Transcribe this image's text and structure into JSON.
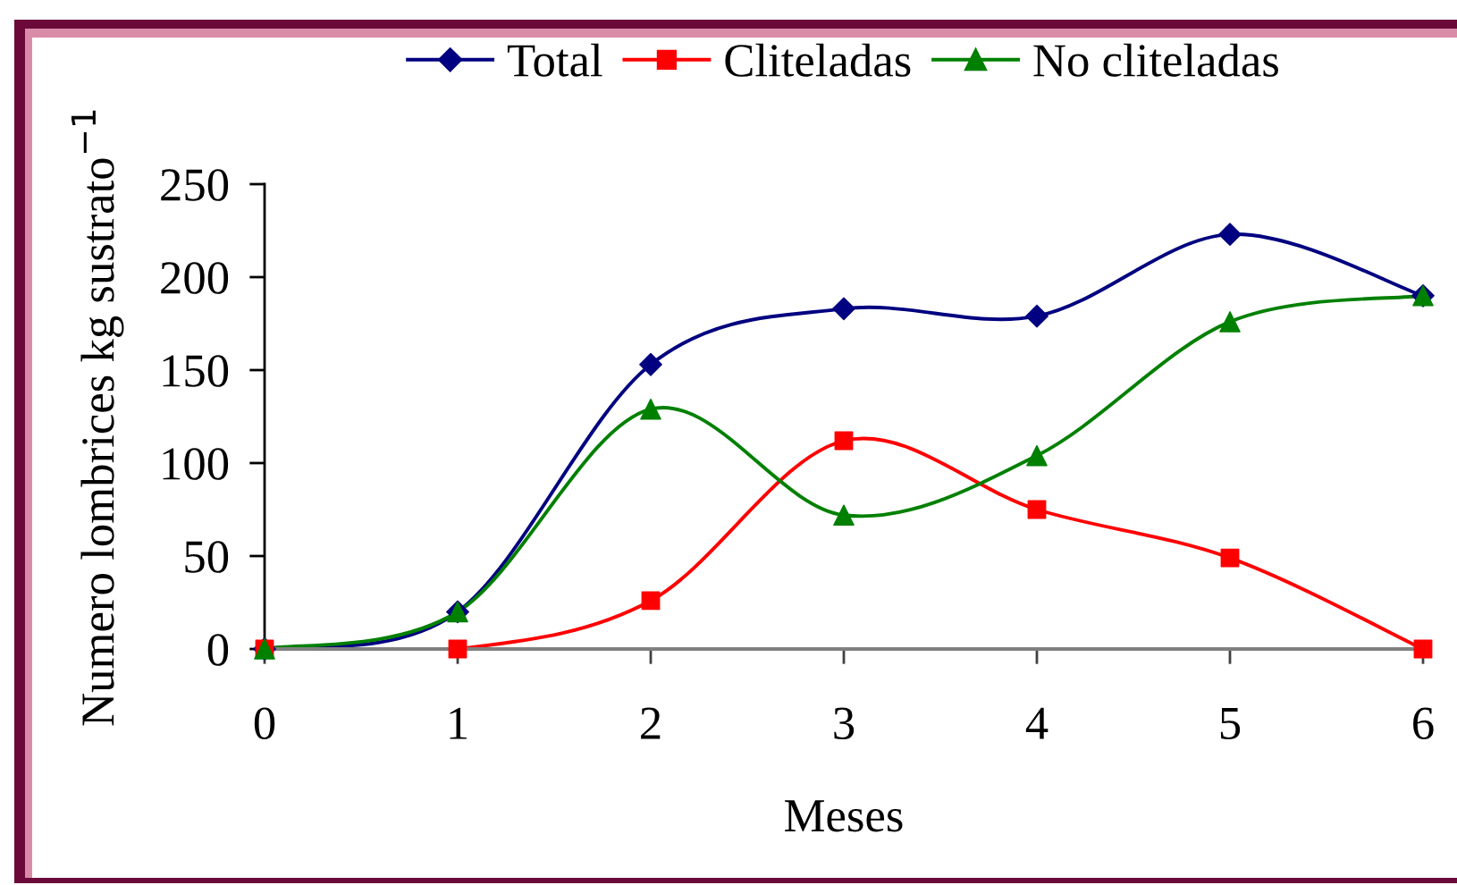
{
  "chart_data": {
    "type": "line",
    "xlabel": "Meses",
    "ylabel": "Numero lombrices kg sustrato$^{−1}$",
    "x": [
      0,
      1,
      2,
      3,
      4,
      5,
      6
    ],
    "xlim": [
      0,
      6
    ],
    "xticks": [
      0,
      1,
      2,
      3,
      4,
      5,
      6
    ],
    "ylim": [
      0,
      250
    ],
    "yticks": [
      0,
      50,
      100,
      150,
      200,
      250
    ],
    "legend": "top",
    "line_style": "solid",
    "series": [
      {
        "name": "Total",
        "color": "#000080",
        "marker": "diamond",
        "values": [
          0,
          20,
          153,
          183,
          179,
          223,
          190
        ]
      },
      {
        "name": "Cliteladas",
        "color": "#ff0000",
        "marker": "square",
        "values": [
          0,
          0,
          26,
          112,
          75,
          49,
          0
        ]
      },
      {
        "name": "No cliteladas",
        "color": "#008000",
        "marker": "triangle",
        "values": [
          0,
          20,
          129,
          72,
          104,
          176,
          190
        ]
      }
    ]
  }
}
